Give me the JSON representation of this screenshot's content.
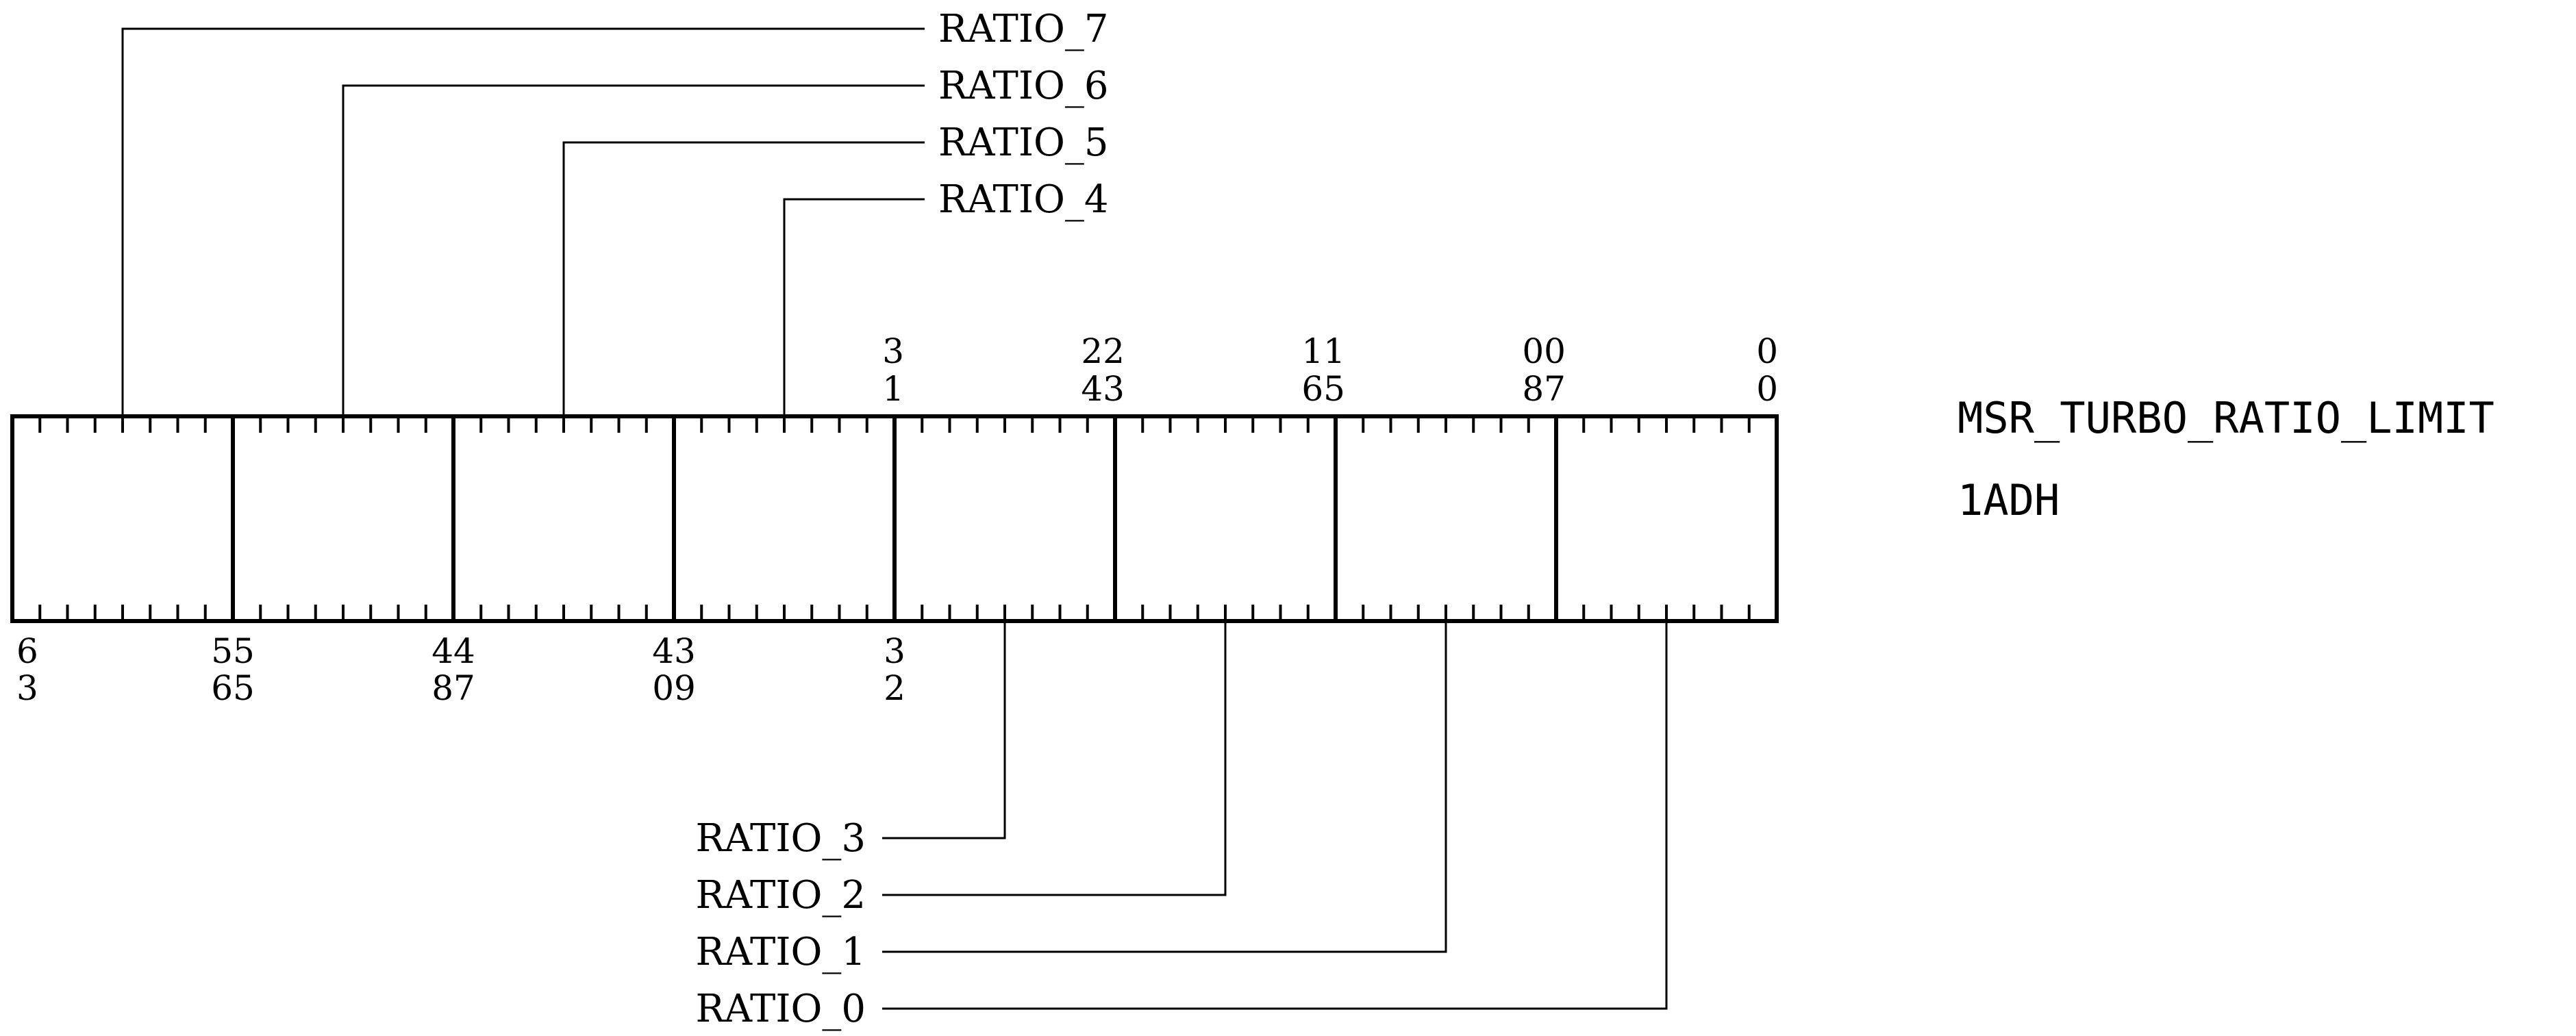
{
  "register": {
    "name": "MSR_TURBO_RATIO_LIMIT",
    "address": "1ADH"
  },
  "fields": [
    {
      "label": "RATIO_7",
      "msb": 63,
      "lsb": 56
    },
    {
      "label": "RATIO_6",
      "msb": 55,
      "lsb": 48
    },
    {
      "label": "RATIO_5",
      "msb": 47,
      "lsb": 40
    },
    {
      "label": "RATIO_4",
      "msb": 39,
      "lsb": 32
    },
    {
      "label": "RATIO_3",
      "msb": 31,
      "lsb": 24
    },
    {
      "label": "RATIO_2",
      "msb": 23,
      "lsb": 16
    },
    {
      "label": "RATIO_1",
      "msb": 15,
      "lsb": 8
    },
    {
      "label": "RATIO_0",
      "msb": 7,
      "lsb": 0
    }
  ],
  "top_bit_labels": [
    {
      "upper": "3",
      "lower": "1"
    },
    {
      "upper": "22",
      "lower": "43"
    },
    {
      "upper": "11",
      "lower": "65"
    },
    {
      "upper": "00",
      "lower": "87"
    },
    {
      "upper": "0",
      "lower": "0"
    }
  ],
  "bottom_bit_labels": [
    {
      "upper": "6",
      "lower": "3"
    },
    {
      "upper": "55",
      "lower": "65"
    },
    {
      "upper": "44",
      "lower": "87"
    },
    {
      "upper": "43",
      "lower": "09"
    },
    {
      "upper": "3",
      "lower": "2"
    }
  ]
}
